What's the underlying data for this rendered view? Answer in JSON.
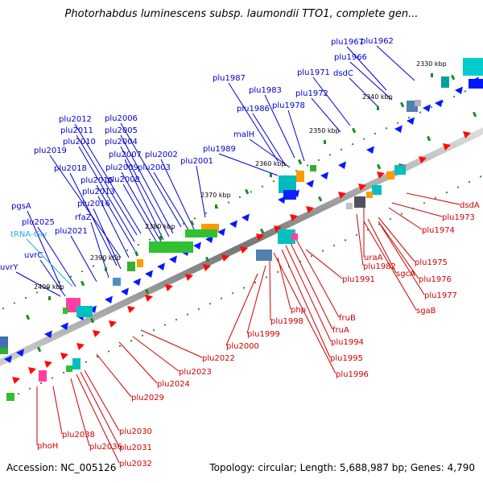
{
  "title": "Photorhabdus luminescens subsp. laumondii TTO1, complete gen...",
  "footer": {
    "accession": "Accession: NC_005126",
    "summary": "Topology: circular; Length: 5,688,987 bp; Genes: 4,790"
  },
  "colors": {
    "forward_label": "#0000cc",
    "reverse_label": "#cc0000",
    "trna_label": "#2aa7e0",
    "backbone": "#808080",
    "cds_forward": "#0018ff",
    "cds_reverse": "#ff0a0a",
    "tick_green": "#1f8a1f"
  },
  "ticks": [
    "2330 kbp",
    "2340 kbp",
    "2350 kbp",
    "2360 kbp",
    "2370 kbp",
    "2380 kbp",
    "2390 kbp",
    "2400 kbp"
  ],
  "forward_labels": [
    "plu1962",
    "plu1967",
    "plu1966",
    "dsdC",
    "plu1971",
    "plu1972",
    "plu1987",
    "plu1983",
    "plu1986",
    "plu1978",
    "malH",
    "plu1989",
    "plu2012",
    "plu2006",
    "plu2011",
    "plu2005",
    "plu2010",
    "plu2004",
    "plu2019",
    "plu2007",
    "plu2002",
    "plu2018",
    "plu2009",
    "plu2003",
    "plu2001",
    "plu2015",
    "plu2008",
    "plu2013",
    "plu2016",
    "pgsA",
    "rfaZ",
    "plu2025",
    "tRNA-Gly",
    "plu2021",
    "uvrC",
    "uvrY"
  ],
  "reverse_labels": [
    "dsdA",
    "plu1973",
    "plu1974",
    "plu1975",
    "uraA",
    "plu1982",
    "plu1976",
    "sgcA",
    "plu1977",
    "sgaB",
    "plu1991",
    "fruB",
    "php",
    "fruA",
    "plu1998",
    "plu1994",
    "plu1999",
    "plu1995",
    "plu2000",
    "plu1996",
    "plu2022",
    "plu2023",
    "plu2024",
    "plu2029",
    "plu2030",
    "plu2038",
    "plu2031",
    "plu2036",
    "phoH",
    "plu2032"
  ]
}
